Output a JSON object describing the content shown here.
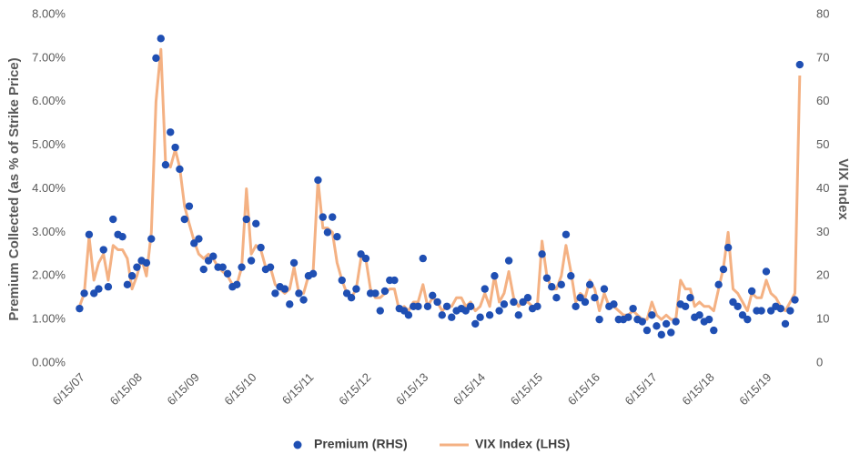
{
  "chart_data": {
    "type": "line_scatter",
    "ylabel": "Premium  Collected  (as % of Strike  Price)",
    "y2label": "VIX Index",
    "xlim": [
      "2007-06-01",
      "2020-02-20"
    ],
    "xticks": [
      {
        "value": "2007-06-15",
        "label": "6/15/07"
      },
      {
        "value": "2008-06-15",
        "label": "6/15/08"
      },
      {
        "value": "2009-06-15",
        "label": "6/15/09"
      },
      {
        "value": "2010-06-15",
        "label": "6/15/10"
      },
      {
        "value": "2011-06-15",
        "label": "6/15/11"
      },
      {
        "value": "2012-06-15",
        "label": "6/15/12"
      },
      {
        "value": "2013-06-15",
        "label": "6/15/13"
      },
      {
        "value": "2014-06-15",
        "label": "6/15/14"
      },
      {
        "value": "2015-06-15",
        "label": "6/15/15"
      },
      {
        "value": "2016-06-15",
        "label": "6/15/16"
      },
      {
        "value": "2017-06-15",
        "label": "6/15/17"
      },
      {
        "value": "2018-06-15",
        "label": "6/15/18"
      },
      {
        "value": "2019-06-15",
        "label": "6/15/19"
      }
    ],
    "ylim": [
      0,
      8
    ],
    "yticks": [
      {
        "value": 0,
        "label": "0.00%"
      },
      {
        "value": 1,
        "label": "1.00%"
      },
      {
        "value": 2,
        "label": "2.00%"
      },
      {
        "value": 3,
        "label": "3.00%"
      },
      {
        "value": 4,
        "label": "4.00%"
      },
      {
        "value": 5,
        "label": "5.00%"
      },
      {
        "value": 6,
        "label": "6.00%"
      },
      {
        "value": 7,
        "label": "7.00%"
      },
      {
        "value": 8,
        "label": "8.00%"
      }
    ],
    "y2lim": [
      0,
      80
    ],
    "y2ticks": [
      0,
      10,
      20,
      30,
      40,
      50,
      60,
      70,
      80
    ],
    "x_start": "2007-06-15",
    "series": [
      {
        "name": "Premium (RHS)",
        "type": "scatter",
        "color": "#1f4fb3",
        "values": [
          1.25,
          1.6,
          2.95,
          1.6,
          1.7,
          2.6,
          1.75,
          3.3,
          2.95,
          2.9,
          1.8,
          2.0,
          2.2,
          2.35,
          2.3,
          2.85,
          7.0,
          7.45,
          4.55,
          5.3,
          4.95,
          4.45,
          3.3,
          3.6,
          2.75,
          2.85,
          2.15,
          2.35,
          2.45,
          2.2,
          2.2,
          2.05,
          1.75,
          1.8,
          2.2,
          3.3,
          2.35,
          3.2,
          2.65,
          2.15,
          2.2,
          1.6,
          1.75,
          1.7,
          1.35,
          2.3,
          1.6,
          1.45,
          2.0,
          2.05,
          4.2,
          3.35,
          3.0,
          3.35,
          2.9,
          1.9,
          1.6,
          1.5,
          1.7,
          2.5,
          2.4,
          1.6,
          1.6,
          1.2,
          1.65,
          1.9,
          1.9,
          1.25,
          1.2,
          1.1,
          1.3,
          1.3,
          2.4,
          1.3,
          1.55,
          1.4,
          1.1,
          1.3,
          1.05,
          1.2,
          1.25,
          1.2,
          1.3,
          0.9,
          1.05,
          1.7,
          1.1,
          2.0,
          1.2,
          1.35,
          2.35,
          1.4,
          1.1,
          1.4,
          1.5,
          1.25,
          1.3,
          2.5,
          1.95,
          1.75,
          1.5,
          1.8,
          2.95,
          2.0,
          1.3,
          1.5,
          1.4,
          1.8,
          1.5,
          1.0,
          1.7,
          1.3,
          1.35,
          1.0,
          1.0,
          1.05,
          1.25,
          1.0,
          0.95,
          0.75,
          1.1,
          0.85,
          0.65,
          0.9,
          0.7,
          0.95,
          1.35,
          1.3,
          1.5,
          1.05,
          1.1,
          0.95,
          1.0,
          0.75,
          1.8,
          2.15,
          2.65,
          1.4,
          1.3,
          1.1,
          1.0,
          1.65,
          1.2,
          1.2,
          2.1,
          1.2,
          1.3,
          1.25,
          0.9,
          1.2,
          1.45,
          6.85
        ]
      },
      {
        "name": "VIX Index (LHS)",
        "type": "line",
        "axis": "y2",
        "color": "#f4b183",
        "values": [
          13,
          16,
          29,
          19,
          23,
          25,
          19,
          27,
          26,
          26,
          24,
          17,
          20,
          24,
          20,
          30,
          60,
          72,
          46,
          45,
          49,
          45,
          36,
          32,
          28,
          25,
          24,
          25,
          24,
          22,
          21,
          20,
          18,
          18,
          22,
          40,
          25,
          27,
          26,
          22,
          22,
          18,
          17,
          16,
          17,
          22,
          16,
          16,
          20,
          21,
          42,
          31,
          31,
          30,
          23,
          19,
          16,
          15,
          17,
          24,
          24,
          17,
          15,
          15,
          16,
          17,
          17,
          12,
          13,
          12,
          14,
          14,
          18,
          13,
          15,
          14,
          12,
          13,
          13,
          15,
          15,
          13,
          14,
          12,
          13,
          16,
          13,
          20,
          14,
          16,
          21,
          15,
          13,
          14,
          14,
          13,
          13,
          28,
          20,
          17,
          17,
          20,
          27,
          21,
          14,
          16,
          15,
          19,
          17,
          12,
          16,
          13,
          13,
          12,
          11,
          11,
          12,
          11,
          10,
          10,
          14,
          11,
          10,
          11,
          10,
          10,
          19,
          17,
          17,
          13,
          14,
          13,
          13,
          12,
          17,
          22,
          30,
          17,
          16,
          14,
          12,
          16,
          15,
          15,
          19,
          16,
          15,
          13,
          12,
          14,
          16,
          66
        ]
      }
    ]
  }
}
